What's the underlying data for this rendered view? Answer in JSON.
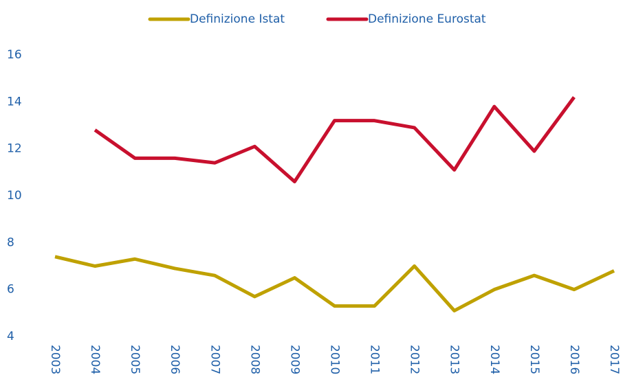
{
  "chart_data": {
    "type": "line",
    "categories": [
      "2003",
      "2004",
      "2005",
      "2006",
      "2007",
      "2008",
      "2009",
      "2010",
      "2011",
      "2012",
      "2013",
      "2014",
      "2015",
      "2016",
      "2017"
    ],
    "series": [
      {
        "name": "Definizione Istat",
        "color": "#bfa100",
        "values": [
          7.4,
          7.0,
          7.3,
          6.9,
          6.6,
          5.7,
          6.5,
          5.3,
          5.3,
          7.0,
          5.1,
          6.0,
          6.6,
          6.0,
          6.8
        ]
      },
      {
        "name": "Definizione Eurostat",
        "color": "#c8102e",
        "values": [
          null,
          12.8,
          11.6,
          11.6,
          11.4,
          12.1,
          10.6,
          13.2,
          13.2,
          12.9,
          11.1,
          13.8,
          11.9,
          14.2,
          null
        ]
      }
    ],
    "ylim": [
      4,
      16
    ],
    "yticks": [
      4,
      6,
      8,
      10,
      12,
      14,
      16
    ],
    "grid": false,
    "legend": "top"
  }
}
